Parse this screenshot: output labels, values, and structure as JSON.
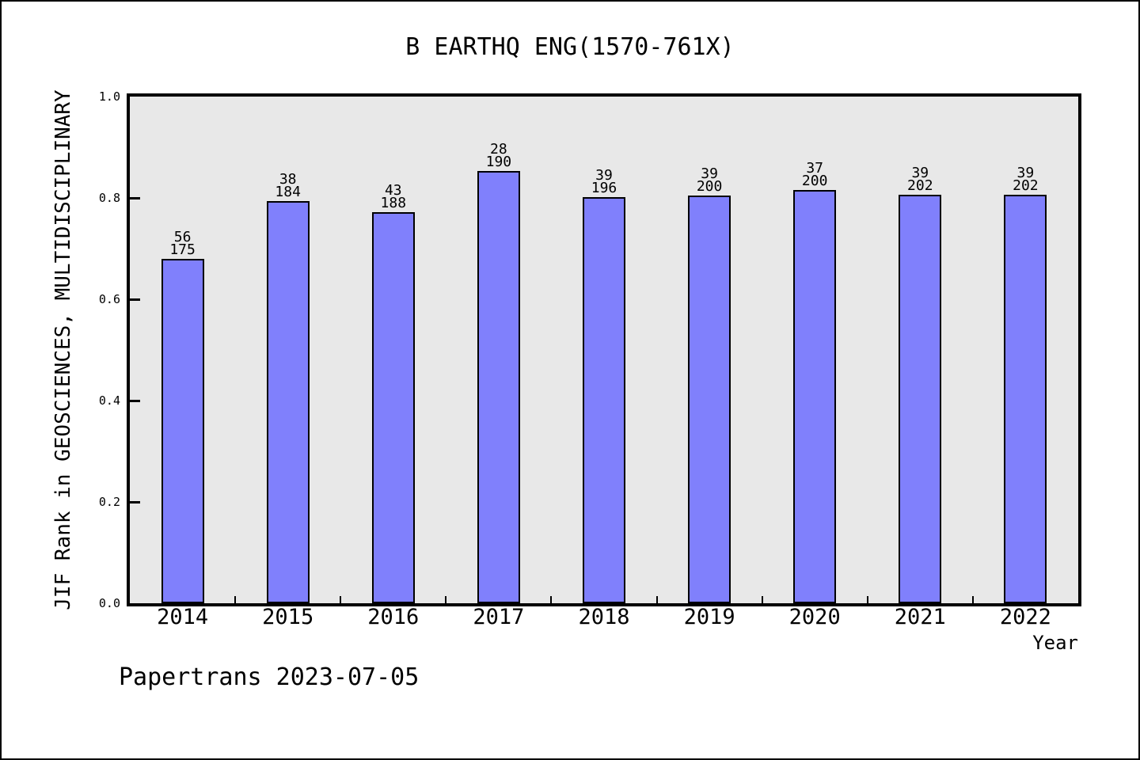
{
  "chart_data": {
    "type": "bar",
    "title": "B EARTHQ ENG(1570-761X)",
    "xlabel": "Year",
    "ylabel": "JIF Rank in GEOSCIENCES, MULTIDISCIPLINARY",
    "ylim": [
      0.0,
      1.0
    ],
    "yticks": [
      "1.0",
      "0.8",
      "0.6",
      "0.4",
      "0.2",
      "0.0"
    ],
    "grid": false,
    "legend": false,
    "categories": [
      "2014",
      "2015",
      "2016",
      "2017",
      "2018",
      "2019",
      "2020",
      "2021",
      "2022"
    ],
    "bars": [
      {
        "year": "2014",
        "rank": 56,
        "total": 175,
        "value": 0.68
      },
      {
        "year": "2015",
        "rank": 38,
        "total": 184,
        "value": 0.7935
      },
      {
        "year": "2016",
        "rank": 43,
        "total": 188,
        "value": 0.7713
      },
      {
        "year": "2017",
        "rank": 28,
        "total": 190,
        "value": 0.8526
      },
      {
        "year": "2018",
        "rank": 39,
        "total": 196,
        "value": 0.801
      },
      {
        "year": "2019",
        "rank": 39,
        "total": 200,
        "value": 0.805
      },
      {
        "year": "2020",
        "rank": 37,
        "total": 200,
        "value": 0.815
      },
      {
        "year": "2021",
        "rank": 39,
        "total": 202,
        "value": 0.8069
      },
      {
        "year": "2022",
        "rank": 39,
        "total": 202,
        "value": 0.8069
      }
    ],
    "colors": {
      "bar_fill": "#8080fc",
      "bar_border": "#000000",
      "plot_bg": "#e8e8e8",
      "frame": "#000000",
      "text": "#000000"
    }
  },
  "footer": {
    "text": "Papertrans 2023-07-05"
  }
}
